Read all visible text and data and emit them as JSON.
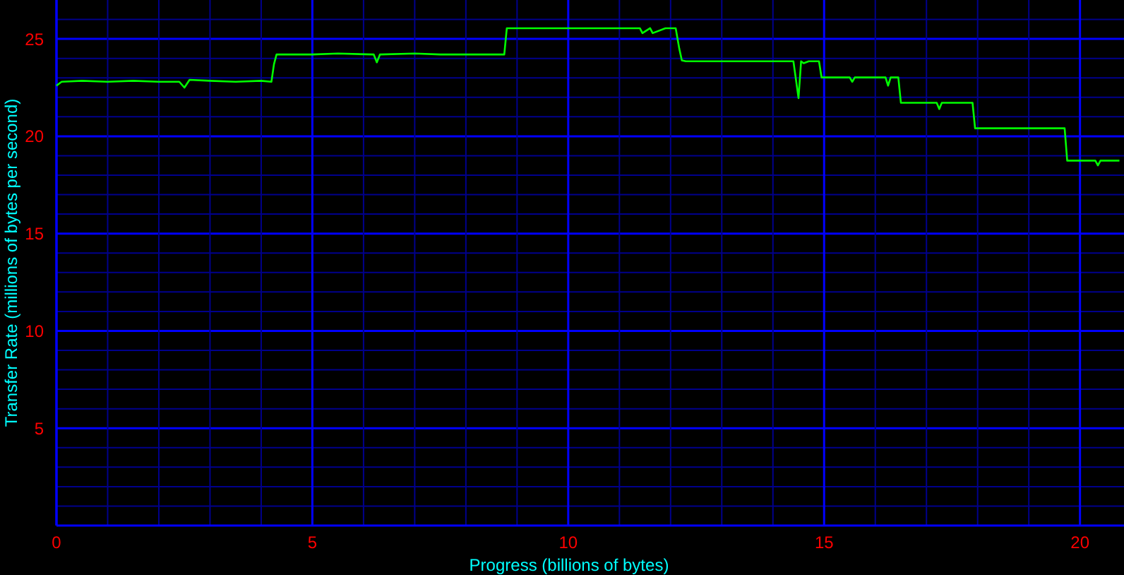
{
  "chart_data": {
    "type": "line",
    "xlabel": "Progress (billions of bytes)",
    "ylabel": "Transfer Rate (millions of bytes per second)",
    "xlim": [
      0,
      20.86
    ],
    "ylim": [
      0,
      27
    ],
    "xticks": [
      0,
      {
        "value": 1,
        "label": null
      },
      {
        "value": 2,
        "label": null
      },
      {
        "value": 3,
        "label": null
      },
      {
        "value": 4,
        "label": null
      },
      5,
      {
        "value": 6,
        "label": null
      },
      {
        "value": 7,
        "label": null
      },
      {
        "value": 8,
        "label": null
      },
      {
        "value": 9,
        "label": null
      },
      10,
      {
        "value": 11,
        "label": null
      },
      {
        "value": 12,
        "label": null
      },
      {
        "value": 13,
        "label": null
      },
      {
        "value": 14,
        "label": null
      },
      15,
      {
        "value": 16,
        "label": null
      },
      {
        "value": 17,
        "label": null
      },
      {
        "value": 18,
        "label": null
      },
      {
        "value": 19,
        "label": null
      },
      20
    ],
    "yticks": [
      {
        "value": 1,
        "label": null
      },
      {
        "value": 2,
        "label": null
      },
      {
        "value": 3,
        "label": null
      },
      {
        "value": 4,
        "label": null
      },
      5,
      {
        "value": 6,
        "label": null
      },
      {
        "value": 7,
        "label": null
      },
      {
        "value": 8,
        "label": null
      },
      {
        "value": 9,
        "label": null
      },
      10,
      {
        "value": 11,
        "label": null
      },
      {
        "value": 12,
        "label": null
      },
      {
        "value": 13,
        "label": null
      },
      {
        "value": 14,
        "label": null
      },
      15,
      {
        "value": 16,
        "label": null
      },
      {
        "value": 17,
        "label": null
      },
      {
        "value": 18,
        "label": null
      },
      {
        "value": 19,
        "label": null
      },
      20,
      {
        "value": 21,
        "label": null
      },
      {
        "value": 22,
        "label": null
      },
      {
        "value": 23,
        "label": null
      },
      {
        "value": 24,
        "label": null
      },
      25,
      {
        "value": 26,
        "label": null
      }
    ],
    "grid": true,
    "marker": "none",
    "line_style": "solid",
    "series": [
      {
        "color": "#00ff00",
        "x": [
          0,
          0.1,
          0.5,
          1.0,
          1.5,
          2.0,
          2.4,
          2.5,
          2.6,
          3.0,
          3.5,
          4.0,
          4.2,
          4.25,
          4.3,
          5.0,
          5.5,
          6.2,
          6.26,
          6.32,
          7.0,
          7.5,
          8.0,
          8.75,
          8.8,
          9.0,
          9.5,
          10.0,
          10.5,
          11.0,
          11.4,
          11.45,
          11.6,
          11.65,
          11.9,
          12.1,
          12.17,
          12.22,
          12.3,
          13.0,
          13.5,
          14.0,
          14.4,
          14.5,
          14.55,
          14.6,
          14.7,
          14.9,
          14.95,
          15.5,
          15.55,
          15.6,
          16.2,
          16.25,
          16.3,
          16.45,
          16.5,
          17.0,
          17.2,
          17.25,
          17.3,
          17.9,
          17.95,
          18.5,
          19.0,
          19.7,
          19.75,
          20.3,
          20.35,
          20.4,
          20.77
        ],
        "values": [
          22.6,
          22.8,
          22.85,
          22.8,
          22.85,
          22.8,
          22.8,
          22.5,
          22.9,
          22.85,
          22.8,
          22.85,
          22.8,
          23.7,
          24.2,
          24.2,
          24.25,
          24.2,
          23.8,
          24.2,
          24.25,
          24.2,
          24.2,
          24.2,
          25.55,
          25.55,
          25.55,
          25.55,
          25.55,
          25.55,
          25.55,
          25.3,
          25.55,
          25.3,
          25.55,
          25.55,
          24.5,
          23.9,
          23.85,
          23.85,
          23.85,
          23.85,
          23.85,
          21.96,
          23.85,
          23.75,
          23.85,
          23.85,
          23.02,
          23.02,
          22.8,
          23.02,
          23.02,
          22.6,
          23.02,
          23.02,
          21.72,
          21.72,
          21.72,
          21.4,
          21.72,
          21.72,
          20.41,
          20.41,
          20.41,
          20.41,
          18.75,
          18.75,
          18.5,
          18.75,
          18.75
        ]
      }
    ]
  }
}
